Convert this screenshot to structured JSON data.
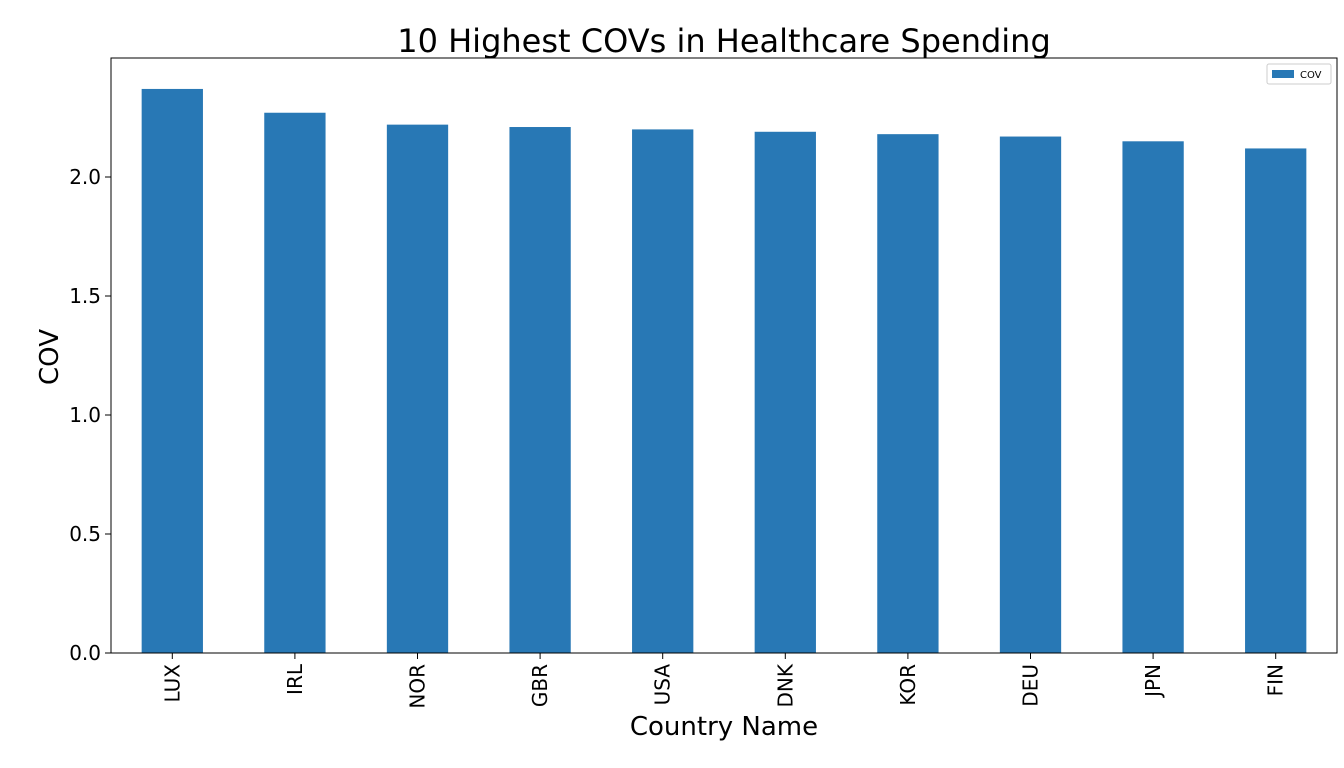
{
  "chart_data": {
    "type": "bar",
    "title": "10 Highest COVs in Healthcare Spending",
    "xlabel": "Country Name",
    "ylabel": "COV",
    "categories": [
      "LUX",
      "IRL",
      "NOR",
      "GBR",
      "USA",
      "DNK",
      "KOR",
      "DEU",
      "JPN",
      "FIN"
    ],
    "series": [
      {
        "name": "COV",
        "color": "#2878b5",
        "values": [
          2.37,
          2.27,
          2.22,
          2.21,
          2.2,
          2.19,
          2.18,
          2.17,
          2.15,
          2.12
        ]
      }
    ],
    "ylim": [
      0,
      2.5
    ],
    "yticks": [
      "0.0",
      "0.5",
      "1.0",
      "1.5",
      "2.0"
    ],
    "grid": false,
    "legend_position": "top-right"
  }
}
